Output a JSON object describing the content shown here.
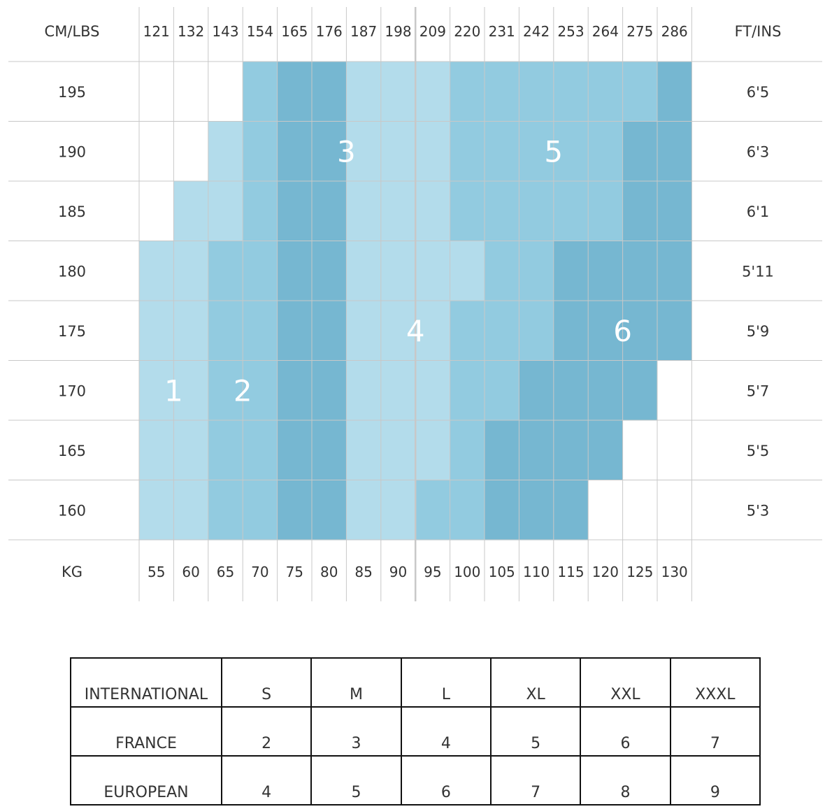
{
  "size_chart": {
    "header_left": "CM/LBS",
    "header_right": "FT/INS",
    "footer_left": "KG",
    "lbs": [
      "121",
      "132",
      "143",
      "154",
      "165",
      "176",
      "187",
      "198",
      "209",
      "220",
      "231",
      "242",
      "253",
      "264",
      "275",
      "286"
    ],
    "kg": [
      "55",
      "60",
      "65",
      "70",
      "75",
      "80",
      "85",
      "90",
      "95",
      "100",
      "105",
      "110",
      "115",
      "120",
      "125",
      "130"
    ],
    "cm": [
      "195",
      "190",
      "185",
      "180",
      "175",
      "170",
      "165",
      "160"
    ],
    "ftins": [
      "6'5",
      "6'3",
      "6'1",
      "5'11",
      "5'9",
      "5'7",
      "5'5",
      "5'3"
    ]
  },
  "chart_data": {
    "type": "heatmap",
    "x": [
      55,
      60,
      65,
      70,
      75,
      80,
      85,
      90,
      95,
      100,
      105,
      110,
      115,
      120,
      125,
      130
    ],
    "y": [
      195,
      190,
      185,
      180,
      175,
      170,
      165,
      160
    ],
    "xlabel_top": "CM/LBS",
    "xlabel_bottom": "KG",
    "ylabel_right": "FT/INS",
    "values": [
      [
        0,
        0,
        0,
        2,
        3,
        3,
        4,
        4,
        4,
        5,
        5,
        5,
        5,
        5,
        5,
        6
      ],
      [
        0,
        0,
        1,
        2,
        3,
        3,
        4,
        4,
        4,
        5,
        5,
        5,
        5,
        5,
        6,
        6
      ],
      [
        0,
        1,
        1,
        2,
        3,
        3,
        4,
        4,
        4,
        5,
        5,
        5,
        5,
        5,
        6,
        6
      ],
      [
        1,
        1,
        2,
        2,
        3,
        3,
        4,
        4,
        4,
        4,
        5,
        5,
        6,
        6,
        6,
        6
      ],
      [
        1,
        1,
        2,
        2,
        3,
        3,
        4,
        4,
        4,
        5,
        5,
        5,
        6,
        6,
        6,
        6
      ],
      [
        1,
        1,
        2,
        2,
        3,
        3,
        4,
        4,
        4,
        5,
        5,
        6,
        6,
        6,
        6,
        0
      ],
      [
        1,
        1,
        2,
        2,
        3,
        3,
        4,
        4,
        4,
        5,
        6,
        6,
        6,
        6,
        0,
        0
      ],
      [
        1,
        1,
        2,
        2,
        3,
        3,
        4,
        4,
        5,
        5,
        6,
        6,
        6,
        0,
        0,
        0
      ]
    ],
    "zone_labels": [
      {
        "label": "1",
        "col": 0.5,
        "row": 5
      },
      {
        "label": "2",
        "col": 2.5,
        "row": 5
      },
      {
        "label": "3",
        "col": 5.5,
        "row": 1
      },
      {
        "label": "4",
        "col": 7.5,
        "row": 4
      },
      {
        "label": "5",
        "col": 11.5,
        "row": 1
      },
      {
        "label": "6",
        "col": 13.5,
        "row": 4
      }
    ],
    "zone_colors": {
      "0": "#ffffff",
      "1": "#b3dceb",
      "2": "#92cbe0",
      "3": "#76b7d1",
      "4": "#b3dceb",
      "5": "#92cbe0",
      "6": "#76b7d1"
    }
  },
  "conversion_table": {
    "rows": [
      [
        "INTERNATIONAL",
        "S",
        "M",
        "L",
        "XL",
        "XXL",
        "XXXL"
      ],
      [
        "FRANCE",
        "2",
        "3",
        "4",
        "5",
        "6",
        "7"
      ],
      [
        "EUROPEAN",
        "4",
        "5",
        "6",
        "7",
        "8",
        "9"
      ]
    ]
  }
}
